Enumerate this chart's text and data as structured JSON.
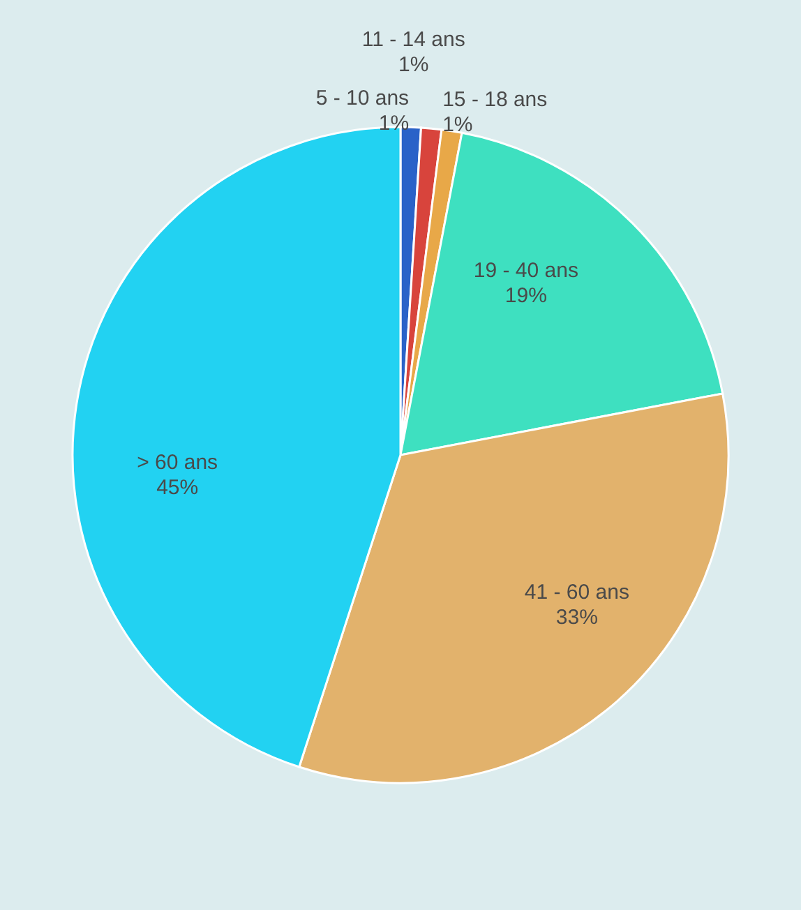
{
  "chart_data": {
    "type": "pie",
    "categories": [
      "5 - 10 ans",
      "11 - 14 ans",
      "15 - 18 ans",
      "19 - 40 ans",
      "41 - 60 ans",
      "> 60 ans"
    ],
    "values": [
      1,
      1,
      1,
      19,
      33,
      45
    ],
    "value_labels": [
      "1%",
      "1%",
      "1%",
      "19%",
      "33%",
      "45%"
    ],
    "colors": [
      "#2a62c8",
      "#d8443c",
      "#e8a848",
      "#3ee0c0",
      "#e2b26c",
      "#22d2f2"
    ],
    "legend": false
  }
}
